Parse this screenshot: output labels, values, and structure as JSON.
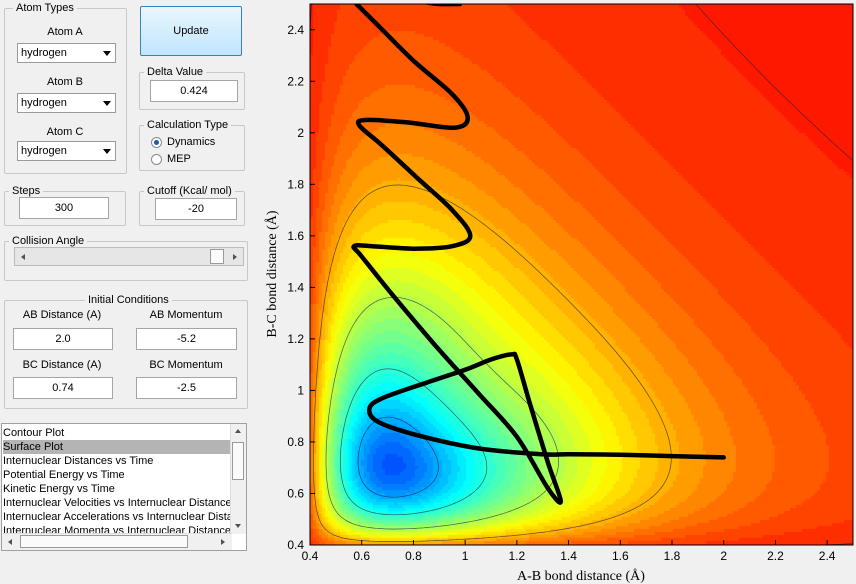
{
  "atom_types": {
    "title": "Atom Types",
    "atom_a": {
      "label": "Atom A",
      "value": "hydrogen"
    },
    "atom_b": {
      "label": "Atom B",
      "value": "hydrogen"
    },
    "atom_c": {
      "label": "Atom C",
      "value": "hydrogen"
    }
  },
  "update_button": "Update",
  "delta_value": {
    "title": "Delta Value",
    "value": "0.424"
  },
  "calculation_type": {
    "title": "Calculation Type",
    "options": [
      {
        "label": "Dynamics",
        "selected": true
      },
      {
        "label": "MEP",
        "selected": false
      }
    ]
  },
  "steps": {
    "title": "Steps",
    "value": "300"
  },
  "cutoff": {
    "title": "Cutoff (Kcal/ mol)",
    "value": "-20"
  },
  "collision_angle": {
    "title": "Collision Angle",
    "slider_fraction": 0.93
  },
  "initial_conditions": {
    "title": "Initial Conditions",
    "ab_distance": {
      "label": "AB Distance (A)",
      "value": "2.0"
    },
    "ab_momentum": {
      "label": "AB Momentum",
      "value": "-5.2"
    },
    "bc_distance": {
      "label": "BC Distance (A)",
      "value": "0.74"
    },
    "bc_momentum": {
      "label": "BC Momentum",
      "value": "-2.5"
    }
  },
  "plot_list": {
    "items": [
      "Contour Plot",
      "Surface Plot",
      "Internuclear Distances vs Time",
      "Potential Energy vs Time",
      "Kinetic Energy vs Time",
      "Internuclear Velocities vs Internuclear Distances",
      "Internuclear Accelerations vs Internuclear Distances",
      "Internuclear Momenta vs Internuclear Distances"
    ],
    "selected_index": 1
  },
  "chart_data": {
    "type": "heatmap",
    "title": "",
    "xlabel": "A-B bond distance (Å)",
    "ylabel": "B-C bond distance (Å)",
    "xlim": [
      0.4,
      2.5
    ],
    "ylim": [
      0.4,
      2.5
    ],
    "xticks": [
      "0.4",
      "0.6",
      "0.8",
      "1",
      "1.2",
      "1.4",
      "1.6",
      "1.8",
      "2",
      "2.2",
      "2.4"
    ],
    "yticks": [
      "0.4",
      "0.6",
      "0.8",
      "1",
      "1.2",
      "1.4",
      "1.6",
      "1.8",
      "2",
      "2.2",
      "2.4"
    ],
    "colormap": "jet",
    "trajectory": [
      [
        2.0,
        0.74
      ],
      [
        1.8,
        0.745
      ],
      [
        1.6,
        0.75
      ],
      [
        1.4,
        0.752
      ],
      [
        1.3,
        0.752
      ],
      [
        1.05,
        0.775
      ],
      [
        0.8,
        0.83
      ],
      [
        0.66,
        0.88
      ],
      [
        0.63,
        0.93
      ],
      [
        0.68,
        0.97
      ],
      [
        0.85,
        1.03
      ],
      [
        1.0,
        1.08
      ],
      [
        1.1,
        1.12
      ],
      [
        1.18,
        1.14
      ],
      [
        1.2,
        1.12
      ],
      [
        1.25,
        0.95
      ],
      [
        1.32,
        0.72
      ],
      [
        1.37,
        0.57
      ],
      [
        1.32,
        0.62
      ],
      [
        1.2,
        0.82
      ],
      [
        1.05,
        0.99
      ],
      [
        0.88,
        1.18
      ],
      [
        0.72,
        1.37
      ],
      [
        0.6,
        1.52
      ],
      [
        0.57,
        1.56
      ],
      [
        0.64,
        1.56
      ],
      [
        0.8,
        1.55
      ],
      [
        0.95,
        1.56
      ],
      [
        1.02,
        1.6
      ],
      [
        0.95,
        1.7
      ],
      [
        0.82,
        1.82
      ],
      [
        0.68,
        1.95
      ],
      [
        0.59,
        2.03
      ],
      [
        0.62,
        2.05
      ],
      [
        0.78,
        2.04
      ],
      [
        0.96,
        2.02
      ],
      [
        1.01,
        2.06
      ],
      [
        0.95,
        2.15
      ],
      [
        0.8,
        2.28
      ],
      [
        0.66,
        2.42
      ],
      [
        0.58,
        2.5
      ]
    ],
    "trajectory_top_fragment": [
      [
        0.83,
        2.51
      ],
      [
        0.9,
        2.5
      ],
      [
        0.98,
        2.5
      ]
    ]
  }
}
